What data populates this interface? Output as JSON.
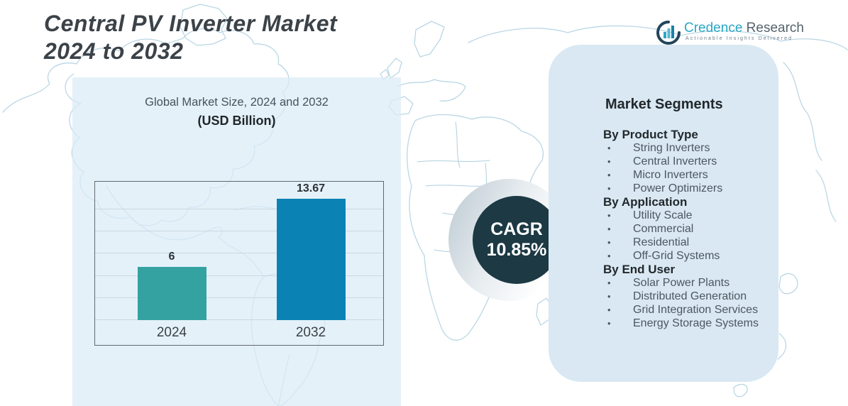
{
  "page": {
    "title_line1": "Central PV Inverter  Market",
    "title_line2": "2024 to 2032"
  },
  "logo": {
    "icon": "bar-chart-circle-icon",
    "brand_primary": "Credence",
    "brand_secondary": "Research",
    "tagline": "Actionable Insights Delivered"
  },
  "chart_data": {
    "type": "bar",
    "title": "Global Market Size, 2024 and 2032",
    "subtitle": "(USD Billion)",
    "unit": "USD Billion",
    "categories": [
      "2024",
      "2032"
    ],
    "values": [
      6,
      13.67
    ],
    "value_labels": [
      "6",
      "13.67"
    ],
    "bar_colors": [
      "#35a2a2",
      "#0b82b4"
    ],
    "ylim": [
      0,
      15
    ],
    "grid_step": 2.5,
    "gridlines": true,
    "legend": "none",
    "xlabel": "",
    "ylabel": ""
  },
  "cagr": {
    "label": "CAGR",
    "value": "10.85%"
  },
  "segments": {
    "heading": "Market Segments",
    "bullet": "•",
    "groups": [
      {
        "title": "By Product Type",
        "items": [
          "String Inverters",
          "Central Inverters",
          "Micro Inverters",
          "Power Optimizers"
        ]
      },
      {
        "title": "By Application",
        "items": [
          "Utility Scale",
          "Commercial",
          "Residential",
          "Off-Grid Systems"
        ]
      },
      {
        "title": "By End User",
        "items": [
          "Solar Power Plants",
          "Distributed Generation",
          "Grid Integration Services",
          "Energy Storage Systems"
        ]
      }
    ]
  },
  "colors": {
    "bar_2024": "#35a2a2",
    "bar_2032": "#0b82b4",
    "cagr_circle": "#1c3944",
    "panel_background": "#d9e8f2",
    "left_block_background": "#e7f2f8",
    "map_stroke": "#aed0e0",
    "title_text": "#3b4248",
    "brand_teal": "#2aa7c4"
  }
}
